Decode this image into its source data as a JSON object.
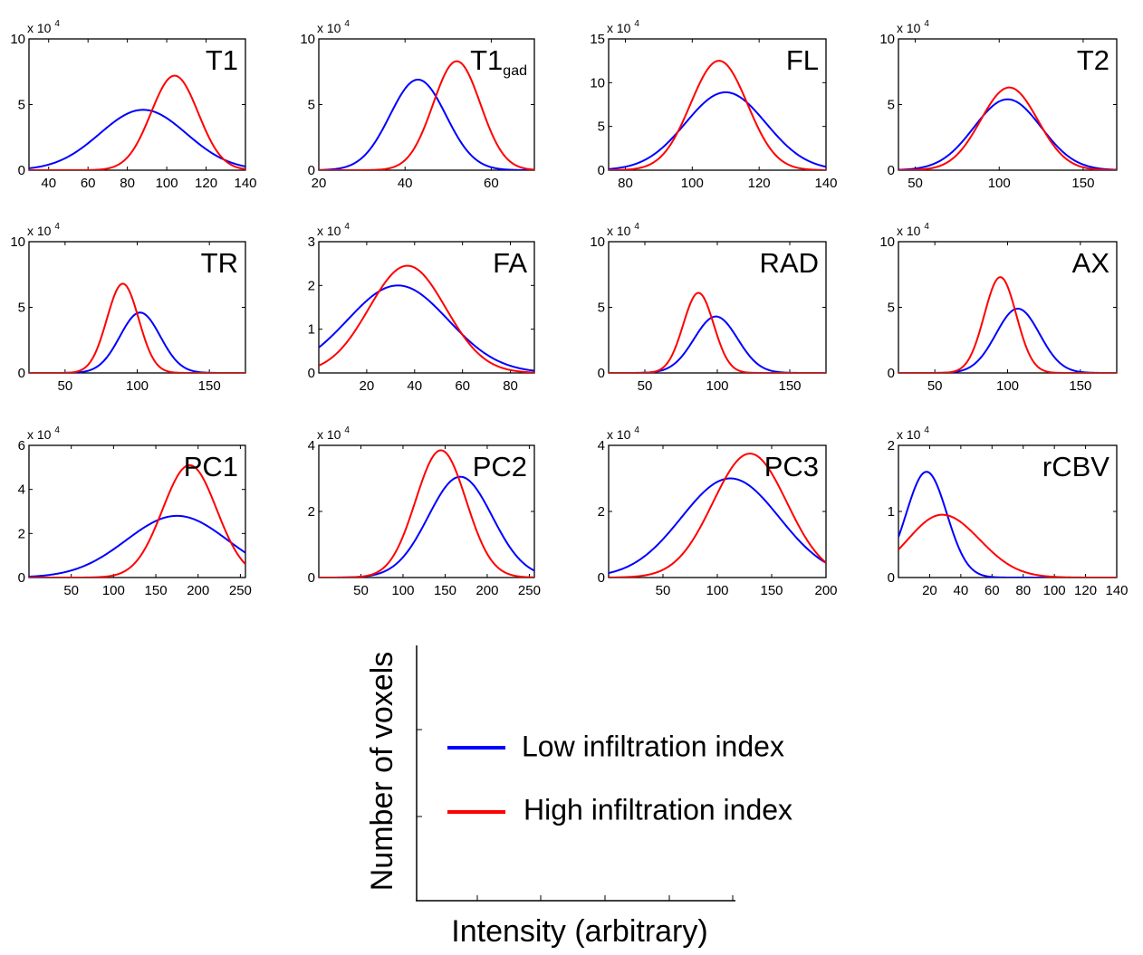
{
  "colors": {
    "low": "#0000ff",
    "high": "#ff0000",
    "axis": "#000000"
  },
  "chart_data": [
    {
      "type": "line",
      "title": "T1",
      "exponent": "x 10",
      "exponent_power": "4",
      "xlim": [
        30,
        140
      ],
      "ylim": [
        0,
        10
      ],
      "xticks": [
        "40",
        "60",
        "80",
        "100",
        "120",
        "140"
      ],
      "yticks": [
        "0",
        "5",
        "10"
      ],
      "series": [
        {
          "name": "Low infiltration index",
          "kind": "gauss",
          "amp": 4.6,
          "mu": 88,
          "sigma": 22
        },
        {
          "name": "High infiltration index",
          "kind": "gauss",
          "amp": 7.2,
          "mu": 104,
          "sigma": 12
        }
      ]
    },
    {
      "type": "line",
      "title": "T1",
      "title_sub": "gad",
      "exponent": "x 10",
      "exponent_power": "4",
      "xlim": [
        20,
        70
      ],
      "ylim": [
        0,
        10
      ],
      "xticks": [
        "20",
        "40",
        "60"
      ],
      "yticks": [
        "0",
        "5",
        "10"
      ],
      "series": [
        {
          "name": "Low infiltration index",
          "kind": "gauss",
          "amp": 6.9,
          "mu": 43,
          "sigma": 6.5
        },
        {
          "name": "High infiltration index",
          "kind": "gauss",
          "amp": 8.3,
          "mu": 52,
          "sigma": 5.5
        }
      ]
    },
    {
      "type": "line",
      "title": "FL",
      "exponent": "x 10",
      "exponent_power": "4",
      "xlim": [
        75,
        140
      ],
      "ylim": [
        0,
        15
      ],
      "xticks": [
        "80",
        "100",
        "120",
        "140"
      ],
      "yticks": [
        "0",
        "5",
        "10",
        "15"
      ],
      "series": [
        {
          "name": "Low infiltration index",
          "kind": "gauss",
          "amp": 8.9,
          "mu": 110,
          "sigma": 12
        },
        {
          "name": "High infiltration index",
          "kind": "gauss",
          "amp": 12.5,
          "mu": 108,
          "sigma": 8.5
        }
      ]
    },
    {
      "type": "line",
      "title": "T2",
      "exponent": "x 10",
      "exponent_power": "4",
      "xlim": [
        40,
        170
      ],
      "ylim": [
        0,
        10
      ],
      "xticks": [
        "50",
        "100",
        "150"
      ],
      "yticks": [
        "0",
        "5",
        "10"
      ],
      "series": [
        {
          "name": "Low infiltration index",
          "kind": "gauss",
          "amp": 5.4,
          "mu": 105,
          "sigma": 20
        },
        {
          "name": "High infiltration index",
          "kind": "gauss",
          "amp": 6.3,
          "mu": 106,
          "sigma": 17
        }
      ]
    },
    {
      "type": "line",
      "title": "TR",
      "exponent": "x 10",
      "exponent_power": "4",
      "xlim": [
        25,
        175
      ],
      "ylim": [
        0,
        10
      ],
      "xticks": [
        "50",
        "100",
        "150"
      ],
      "yticks": [
        "0",
        "5",
        "10"
      ],
      "series": [
        {
          "name": "Low infiltration index",
          "kind": "gauss",
          "amp": 4.6,
          "mu": 102,
          "sigma": 14
        },
        {
          "name": "High infiltration index",
          "kind": "gauss",
          "amp": 6.8,
          "mu": 90,
          "sigma": 11
        }
      ]
    },
    {
      "type": "line",
      "title": "FA",
      "exponent": "x 10",
      "exponent_power": "4",
      "xlim": [
        0,
        90
      ],
      "ylim": [
        0,
        3
      ],
      "xticks": [
        "20",
        "40",
        "60",
        "80"
      ],
      "yticks": [
        "0",
        "1",
        "2",
        "3"
      ],
      "series": [
        {
          "name": "Low infiltration index",
          "kind": "gauss",
          "amp": 2.0,
          "mu": 33,
          "sigma": 21
        },
        {
          "name": "High infiltration index",
          "kind": "gauss",
          "amp": 2.45,
          "mu": 37,
          "sigma": 16
        }
      ]
    },
    {
      "type": "line",
      "title": "RAD",
      "exponent": "x 10",
      "exponent_power": "4",
      "xlim": [
        25,
        175
      ],
      "ylim": [
        0,
        10
      ],
      "xticks": [
        "50",
        "100",
        "150"
      ],
      "yticks": [
        "0",
        "5",
        "10"
      ],
      "series": [
        {
          "name": "Low infiltration index",
          "kind": "gauss",
          "amp": 4.3,
          "mu": 99,
          "sigma": 15
        },
        {
          "name": "High infiltration index",
          "kind": "gauss",
          "amp": 6.1,
          "mu": 87,
          "sigma": 10.5
        }
      ]
    },
    {
      "type": "line",
      "title": "AX",
      "exponent": "x 10",
      "exponent_power": "4",
      "xlim": [
        25,
        175
      ],
      "ylim": [
        0,
        10
      ],
      "xticks": [
        "50",
        "100",
        "150"
      ],
      "yticks": [
        "0",
        "5",
        "10"
      ],
      "series": [
        {
          "name": "Low infiltration index",
          "kind": "gauss",
          "amp": 4.9,
          "mu": 107,
          "sigma": 15
        },
        {
          "name": "High infiltration index",
          "kind": "gauss",
          "amp": 7.3,
          "mu": 95,
          "sigma": 11
        }
      ]
    },
    {
      "type": "line",
      "title": "PC1",
      "exponent": "x 10",
      "exponent_power": "4",
      "xlim": [
        0,
        256
      ],
      "ylim": [
        0,
        6
      ],
      "xticks": [
        "50",
        "100",
        "150",
        "200",
        "250"
      ],
      "yticks": [
        "0",
        "2",
        "4",
        "6"
      ],
      "series": [
        {
          "name": "Low infiltration index",
          "kind": "gauss",
          "amp": 2.8,
          "mu": 175,
          "sigma": 60
        },
        {
          "name": "High infiltration index",
          "kind": "gauss",
          "amp": 5.1,
          "mu": 190,
          "sigma": 32
        }
      ]
    },
    {
      "type": "line",
      "title": "PC2",
      "exponent": "x 10",
      "exponent_power": "4",
      "xlim": [
        0,
        256
      ],
      "ylim": [
        0,
        4
      ],
      "xticks": [
        "50",
        "100",
        "150",
        "200",
        "250"
      ],
      "yticks": [
        "0",
        "2",
        "4"
      ],
      "series": [
        {
          "name": "Low infiltration index",
          "kind": "gauss",
          "amp": 3.05,
          "mu": 168,
          "sigma": 38
        },
        {
          "name": "High infiltration index",
          "kind": "gauss",
          "amp": 3.85,
          "mu": 145,
          "sigma": 30
        }
      ]
    },
    {
      "type": "line",
      "title": "PC3",
      "exponent": "x 10",
      "exponent_power": "4",
      "xlim": [
        0,
        200
      ],
      "ylim": [
        0,
        4
      ],
      "xticks": [
        "50",
        "100",
        "150",
        "200"
      ],
      "yticks": [
        "0",
        "2",
        "4"
      ],
      "series": [
        {
          "name": "Low infiltration index",
          "kind": "gauss",
          "amp": 3.0,
          "mu": 112,
          "sigma": 45
        },
        {
          "name": "High infiltration index",
          "kind": "gauss",
          "amp": 3.75,
          "mu": 130,
          "sigma": 34
        }
      ]
    },
    {
      "type": "line",
      "title": "rCBV",
      "exponent": "x 10",
      "exponent_power": "4",
      "xlim": [
        0,
        140
      ],
      "ylim": [
        0,
        2
      ],
      "xticks": [
        "20",
        "40",
        "60",
        "80",
        "100",
        "120",
        "140"
      ],
      "yticks": [
        "0",
        "1",
        "2"
      ],
      "series": [
        {
          "name": "Low infiltration index",
          "kind": "gauss",
          "amp": 1.6,
          "mu": 18,
          "sigma": 13
        },
        {
          "name": "High infiltration index",
          "kind": "skew",
          "amp": 0.95,
          "mu": 28,
          "sigma_left": 22,
          "sigma_right": 24
        }
      ]
    }
  ],
  "legend": {
    "low_label": "Low infiltration index",
    "high_label": "High infiltration index",
    "ylabel": "Number of voxels",
    "xlabel": "Intensity (arbitrary)"
  }
}
